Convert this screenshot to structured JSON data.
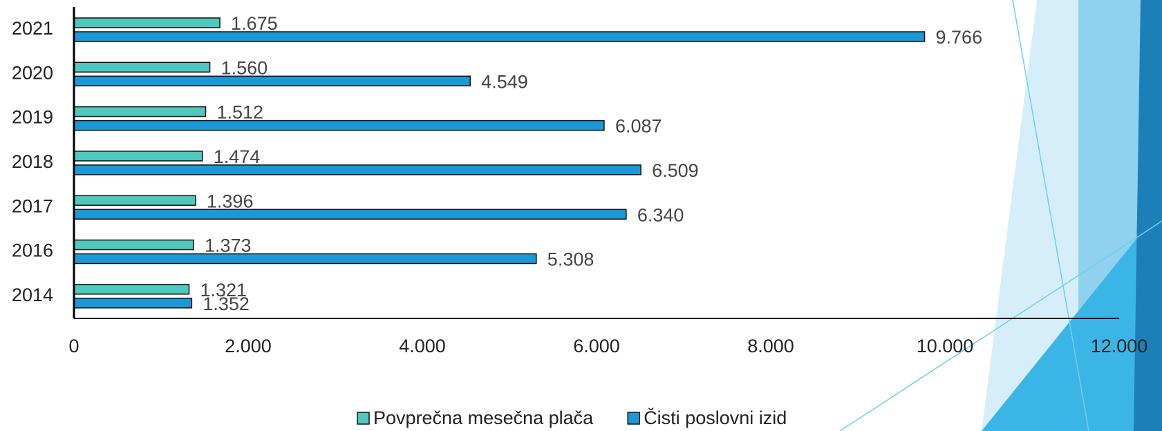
{
  "chart_data": {
    "type": "hbar",
    "categories": [
      "2014",
      "2016",
      "2017",
      "2018",
      "2019",
      "2020",
      "2021"
    ],
    "series": [
      {
        "name": "Povprečna mesečna plača",
        "color": "#4fc8bd",
        "values": [
          1321,
          1373,
          1396,
          1474,
          1512,
          1560,
          1675
        ],
        "value_labels": [
          "1.321",
          "1.373",
          "1.396",
          "1.474",
          "1.512",
          "1.560",
          "1.675"
        ]
      },
      {
        "name": "Čisti poslovni izid",
        "color": "#1b98d8",
        "values": [
          1352,
          5308,
          6340,
          6509,
          6087,
          4549,
          9766
        ],
        "value_labels": [
          "1.352",
          "5.308",
          "6.340",
          "6.509",
          "6.087",
          "4.549",
          "9.766"
        ]
      }
    ],
    "xlim": [
      0,
      12000
    ],
    "xticks": [
      0,
      {
        "value": 2000,
        "label": "2.000"
      },
      {
        "value": 4000,
        "label": "4.000"
      },
      {
        "value": 6000,
        "label": "6.000"
      },
      {
        "value": 8000,
        "label": "8.000"
      },
      {
        "value": 10000,
        "label": "10.000"
      },
      {
        "value": 12000,
        "label": "12.000"
      }
    ]
  }
}
